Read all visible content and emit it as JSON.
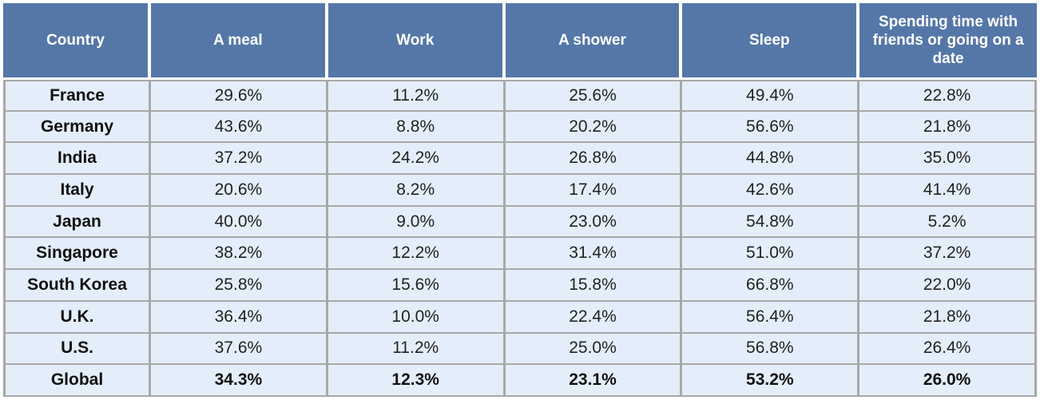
{
  "chart_data": {
    "type": "table",
    "columns": [
      "Country",
      "A meal",
      "Work",
      "A shower",
      "Sleep",
      "Spending time with friends or going on a date"
    ],
    "rows": [
      {
        "country": "France",
        "values": [
          "29.6%",
          "11.2%",
          "25.6%",
          "49.4%",
          "22.8%"
        ]
      },
      {
        "country": "Germany",
        "values": [
          "43.6%",
          "8.8%",
          "20.2%",
          "56.6%",
          "21.8%"
        ]
      },
      {
        "country": "India",
        "values": [
          "37.2%",
          "24.2%",
          "26.8%",
          "44.8%",
          "35.0%"
        ]
      },
      {
        "country": "Italy",
        "values": [
          "20.6%",
          "8.2%",
          "17.4%",
          "42.6%",
          "41.4%"
        ]
      },
      {
        "country": "Japan",
        "values": [
          "40.0%",
          "9.0%",
          "23.0%",
          "54.8%",
          "5.2%"
        ]
      },
      {
        "country": "Singapore",
        "values": [
          "38.2%",
          "12.2%",
          "31.4%",
          "51.0%",
          "37.2%"
        ]
      },
      {
        "country": "South Korea",
        "values": [
          "25.8%",
          "15.6%",
          "15.8%",
          "66.8%",
          "22.0%"
        ]
      },
      {
        "country": "U.K.",
        "values": [
          "36.4%",
          "10.0%",
          "22.4%",
          "56.4%",
          "21.8%"
        ]
      },
      {
        "country": "U.S.",
        "values": [
          "37.6%",
          "11.2%",
          "25.0%",
          "56.8%",
          "26.4%"
        ]
      },
      {
        "country": "Global",
        "values": [
          "34.3%",
          "12.3%",
          "23.1%",
          "53.2%",
          "26.0%"
        ]
      }
    ],
    "colors": {
      "header_background": "#5577a8",
      "header_text": "#ffffff",
      "cell_background": "#e4eefa",
      "grid_lines": "#a8a8a8"
    }
  }
}
